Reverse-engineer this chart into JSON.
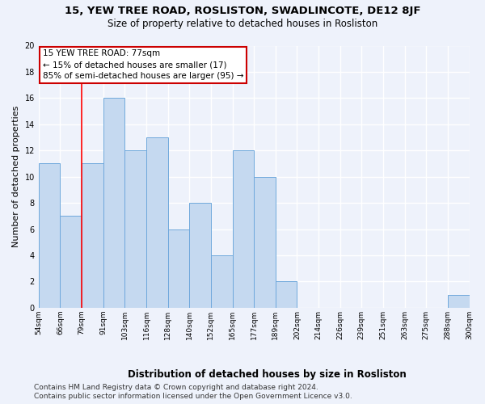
{
  "title": "15, YEW TREE ROAD, ROSLISTON, SWADLINCOTE, DE12 8JF",
  "subtitle": "Size of property relative to detached houses in Rosliston",
  "xlabel": "Distribution of detached houses by size in Rosliston",
  "ylabel": "Number of detached properties",
  "bar_values": [
    11,
    7,
    11,
    16,
    12,
    13,
    6,
    8,
    4,
    12,
    10,
    2,
    0,
    0,
    0,
    0,
    0,
    0,
    0,
    1
  ],
  "bar_labels": [
    "54sqm",
    "66sqm",
    "79sqm",
    "91sqm",
    "103sqm",
    "116sqm",
    "128sqm",
    "140sqm",
    "152sqm",
    "165sqm",
    "177sqm",
    "189sqm",
    "202sqm",
    "214sqm",
    "226sqm",
    "239sqm",
    "251sqm",
    "263sqm",
    "275sqm",
    "288sqm",
    "300sqm"
  ],
  "bar_color": "#c5d9f0",
  "bar_edge_color": "#6fa8dc",
  "red_line_x": 2,
  "annotation_title": "15 YEW TREE ROAD: 77sqm",
  "annotation_line1": "← 15% of detached houses are smaller (17)",
  "annotation_line2": "85% of semi-detached houses are larger (95) →",
  "annotation_box_color": "#ffffff",
  "annotation_box_edge": "#cc0000",
  "footer_line1": "Contains HM Land Registry data © Crown copyright and database right 2024.",
  "footer_line2": "Contains public sector information licensed under the Open Government Licence v3.0.",
  "ylim": [
    0,
    20
  ],
  "yticks": [
    0,
    2,
    4,
    6,
    8,
    10,
    12,
    14,
    16,
    18,
    20
  ],
  "background_color": "#eef2fb",
  "grid_color": "#ffffff",
  "title_fontsize": 9.5,
  "subtitle_fontsize": 8.5,
  "ylabel_fontsize": 8,
  "xlabel_fontsize": 8.5,
  "tick_fontsize": 6.5,
  "annotation_fontsize": 7.5,
  "footer_fontsize": 6.5
}
